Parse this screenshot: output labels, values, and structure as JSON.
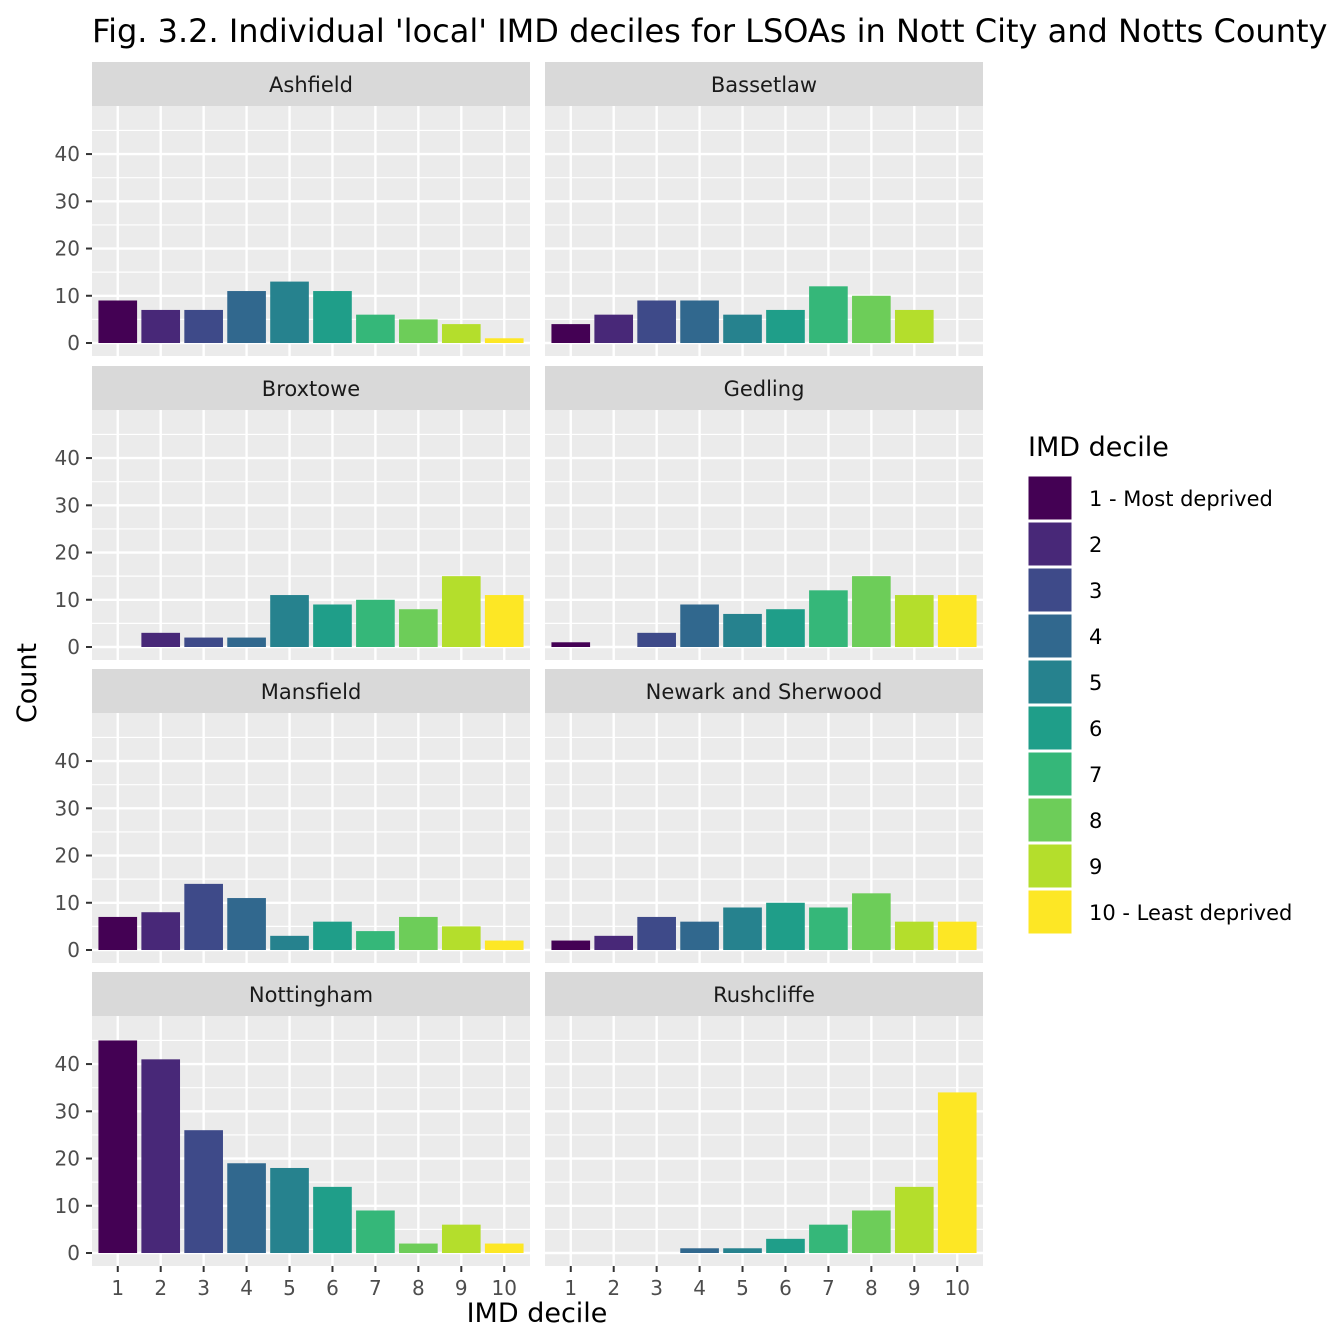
{
  "chart_data": {
    "type": "bar",
    "title": "Fig. 3.2. Individual 'local' IMD deciles for LSOAs in Nott City and Notts County",
    "xlabel": "IMD decile",
    "ylabel": "Count",
    "ylim": [
      0,
      47
    ],
    "y_ticks": [
      "0",
      "10",
      "20",
      "30",
      "40"
    ],
    "y_tick_values": [
      0,
      10,
      20,
      30,
      40
    ],
    "categories": [
      "1",
      "2",
      "3",
      "4",
      "5",
      "6",
      "7",
      "8",
      "9",
      "10"
    ],
    "grid": true,
    "legend": {
      "title": "IMD decile",
      "placement": "right",
      "entries": [
        "1 - Most deprived",
        "2",
        "3",
        "4",
        "5",
        "6",
        "7",
        "8",
        "9",
        "10 - Least deprived"
      ]
    },
    "colors": [
      "#440154",
      "#482878",
      "#3E4A89",
      "#31688E",
      "#26828E",
      "#1F9E89",
      "#35B779",
      "#6DCD59",
      "#B4DE2C",
      "#FDE725"
    ],
    "panels": [
      {
        "name": "Ashfield",
        "values": [
          9,
          7,
          7,
          11,
          13,
          11,
          6,
          5,
          4,
          1
        ]
      },
      {
        "name": "Bassetlaw",
        "values": [
          4,
          6,
          9,
          9,
          6,
          7,
          12,
          10,
          7,
          0
        ]
      },
      {
        "name": "Broxtowe",
        "values": [
          0,
          3,
          2,
          2,
          11,
          9,
          10,
          8,
          15,
          11
        ]
      },
      {
        "name": "Gedling",
        "values": [
          1,
          0,
          3,
          9,
          7,
          8,
          12,
          15,
          11,
          11
        ]
      },
      {
        "name": "Mansfield",
        "values": [
          7,
          8,
          14,
          11,
          3,
          6,
          4,
          7,
          5,
          2
        ]
      },
      {
        "name": "Newark and Sherwood",
        "values": [
          2,
          3,
          7,
          6,
          9,
          10,
          9,
          12,
          6,
          6
        ]
      },
      {
        "name": "Nottingham",
        "values": [
          45,
          41,
          26,
          19,
          18,
          14,
          9,
          2,
          6,
          2
        ]
      },
      {
        "name": "Rushcliffe",
        "values": [
          0,
          0,
          0,
          1,
          1,
          3,
          6,
          9,
          14,
          34
        ]
      }
    ]
  }
}
